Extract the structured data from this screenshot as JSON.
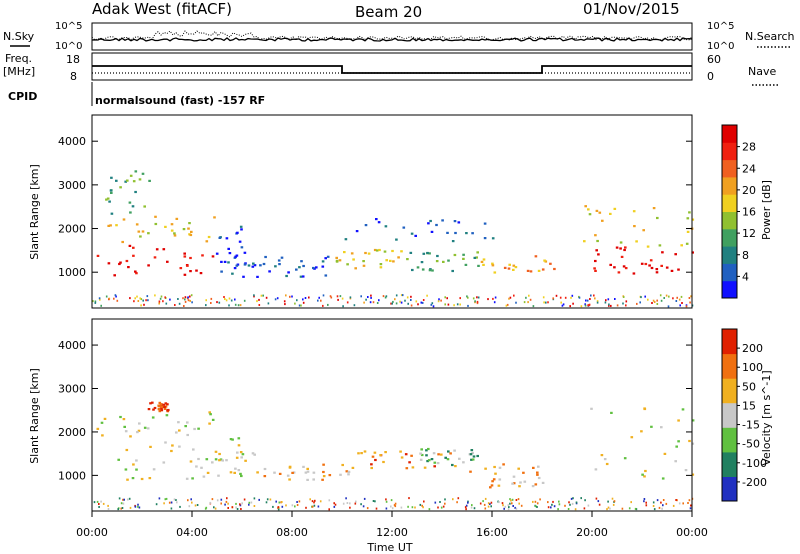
{
  "header": {
    "station": "Adak West (fitACF)",
    "beam": "Beam 20",
    "date": "01/Nov/2015"
  },
  "strip_labels": {
    "nsky": "N.Sky",
    "nsearch": "N.Search",
    "freq": "Freq.",
    "freq_unit": "[MHz]",
    "nave": "Nave",
    "cpid": "CPID",
    "program": "normalsound (fast) -157 RF"
  },
  "strip_ticks": {
    "noise_left": [
      "10^5",
      "10^0"
    ],
    "noise_right": [
      "10^5",
      "10^0"
    ],
    "freq_left": [
      "18",
      "8"
    ],
    "freq_right": [
      "60",
      "0"
    ]
  },
  "chart_data": [
    {
      "type": "heatmap",
      "title": "",
      "xlabel": "Time UT",
      "ylabel": "Slant Range [km]",
      "x_ticks": [
        "00:00",
        "04:00",
        "08:00",
        "12:00",
        "16:00",
        "20:00",
        "00:00"
      ],
      "x_range_hours": [
        0,
        24
      ],
      "y_ticks": [
        1000,
        2000,
        3000,
        4000
      ],
      "ylim": [
        180,
        4600
      ],
      "colorbar": {
        "label": "Power [dB]",
        "ticks": [
          "4",
          "8",
          "12",
          "16",
          "20",
          "24",
          "28"
        ],
        "colors": [
          "#1010ff",
          "#2060c0",
          "#208080",
          "#40a060",
          "#90c030",
          "#f0d020",
          "#f0a020",
          "#f06020",
          "#f02010",
          "#e00000"
        ]
      },
      "regions": [
        {
          "t": [
            0.1,
            4.9
          ],
          "r": [
            950,
            1700
          ],
          "level": 9
        },
        {
          "t": [
            0.1,
            4.9
          ],
          "r": [
            1700,
            2300
          ],
          "level": 5
        },
        {
          "t": [
            0.5,
            2.5
          ],
          "r": [
            2350,
            3400
          ],
          "level": 3
        },
        {
          "t": [
            4.9,
            6.2
          ],
          "r": [
            900,
            2100
          ],
          "level": 1
        },
        {
          "t": [
            6.2,
            9.5
          ],
          "r": [
            900,
            1400
          ],
          "level": 1
        },
        {
          "t": [
            9.5,
            12.5
          ],
          "r": [
            1100,
            1550
          ],
          "level": 5
        },
        {
          "t": [
            12.5,
            15.5
          ],
          "r": [
            1050,
            1500
          ],
          "level": 3
        },
        {
          "t": [
            15.5,
            18.5
          ],
          "r": [
            1000,
            1400
          ],
          "level": 6
        },
        {
          "t": [
            10.0,
            16.0
          ],
          "r": [
            1700,
            2300
          ],
          "level": 1
        },
        {
          "t": [
            19.6,
            24.0
          ],
          "r": [
            950,
            1600
          ],
          "level": 9
        },
        {
          "t": [
            19.6,
            24.0
          ],
          "r": [
            1600,
            2600
          ],
          "level": 5
        }
      ]
    },
    {
      "type": "heatmap",
      "title": "",
      "xlabel": "Time UT",
      "ylabel": "Slant Range [km]",
      "x_ticks": [
        "00:00",
        "04:00",
        "08:00",
        "12:00",
        "16:00",
        "20:00",
        "00:00"
      ],
      "x_range_hours": [
        0,
        24
      ],
      "y_ticks": [
        1000,
        2000,
        3000,
        4000
      ],
      "ylim": [
        180,
        4600
      ],
      "colorbar": {
        "label": "Velocity [m s^-1]",
        "ticks": [
          "200",
          "100",
          "50",
          "15",
          "-15",
          "-50",
          "-100",
          "-200"
        ],
        "colors": [
          "#2030c0",
          "#208060",
          "#60c040",
          "#c8c8c8",
          "#f0b020",
          "#f07010",
          "#e02000"
        ]
      },
      "regions": [
        {
          "t": [
            0.1,
            4.9
          ],
          "r": [
            850,
            1700
          ],
          "level": 3
        },
        {
          "t": [
            0.1,
            4.9
          ],
          "r": [
            1700,
            2500
          ],
          "level": 3
        },
        {
          "t": [
            2.2,
            3.0
          ],
          "r": [
            2500,
            2700
          ],
          "level": 6
        },
        {
          "t": [
            4.9,
            6.5
          ],
          "r": [
            1000,
            1900
          ],
          "level": 3
        },
        {
          "t": [
            6.5,
            10.5
          ],
          "r": [
            900,
            1300
          ],
          "level": 4
        },
        {
          "t": [
            10.5,
            14.5
          ],
          "r": [
            1150,
            1600
          ],
          "level": 5
        },
        {
          "t": [
            13.0,
            15.5
          ],
          "r": [
            1250,
            1650
          ],
          "level": 2
        },
        {
          "t": [
            15.0,
            18.0
          ],
          "r": [
            750,
            1300
          ],
          "level": 4
        },
        {
          "t": [
            19.5,
            24.0
          ],
          "r": [
            950,
            2600
          ],
          "level": 3
        }
      ]
    }
  ]
}
